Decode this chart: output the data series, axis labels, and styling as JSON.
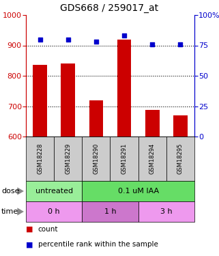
{
  "title": "GDS668 / 259017_at",
  "samples": [
    "GSM18228",
    "GSM18229",
    "GSM18290",
    "GSM18291",
    "GSM18294",
    "GSM18295"
  ],
  "bar_values": [
    835,
    840,
    720,
    918,
    688,
    670
  ],
  "scatter_values": [
    80,
    80,
    78,
    83,
    76,
    76
  ],
  "ylim_left": [
    600,
    1000
  ],
  "ylim_right": [
    0,
    100
  ],
  "yticks_left": [
    600,
    700,
    800,
    900,
    1000
  ],
  "yticks_right": [
    0,
    25,
    50,
    75,
    100
  ],
  "bar_color": "#cc0000",
  "scatter_color": "#0000cc",
  "dose_spans": [
    [
      0,
      2,
      "untreated",
      "#99EE99"
    ],
    [
      2,
      6,
      "0.1 uM IAA",
      "#66DD66"
    ]
  ],
  "time_spans": [
    [
      0,
      2,
      "0 h",
      "#EE99EE"
    ],
    [
      2,
      4,
      "1 h",
      "#CC77CC"
    ],
    [
      4,
      6,
      "3 h",
      "#EE99EE"
    ]
  ],
  "dose_label": "dose",
  "time_label": "time",
  "legend_count": "count",
  "legend_percentile": "percentile rank within the sample",
  "left_axis_color": "#cc0000",
  "right_axis_color": "#0000cc",
  "sample_bg_color": "#cccccc",
  "title_fontsize": 10,
  "tick_fontsize": 8,
  "sample_fontsize": 6,
  "row_fontsize": 8,
  "legend_fontsize": 7.5
}
